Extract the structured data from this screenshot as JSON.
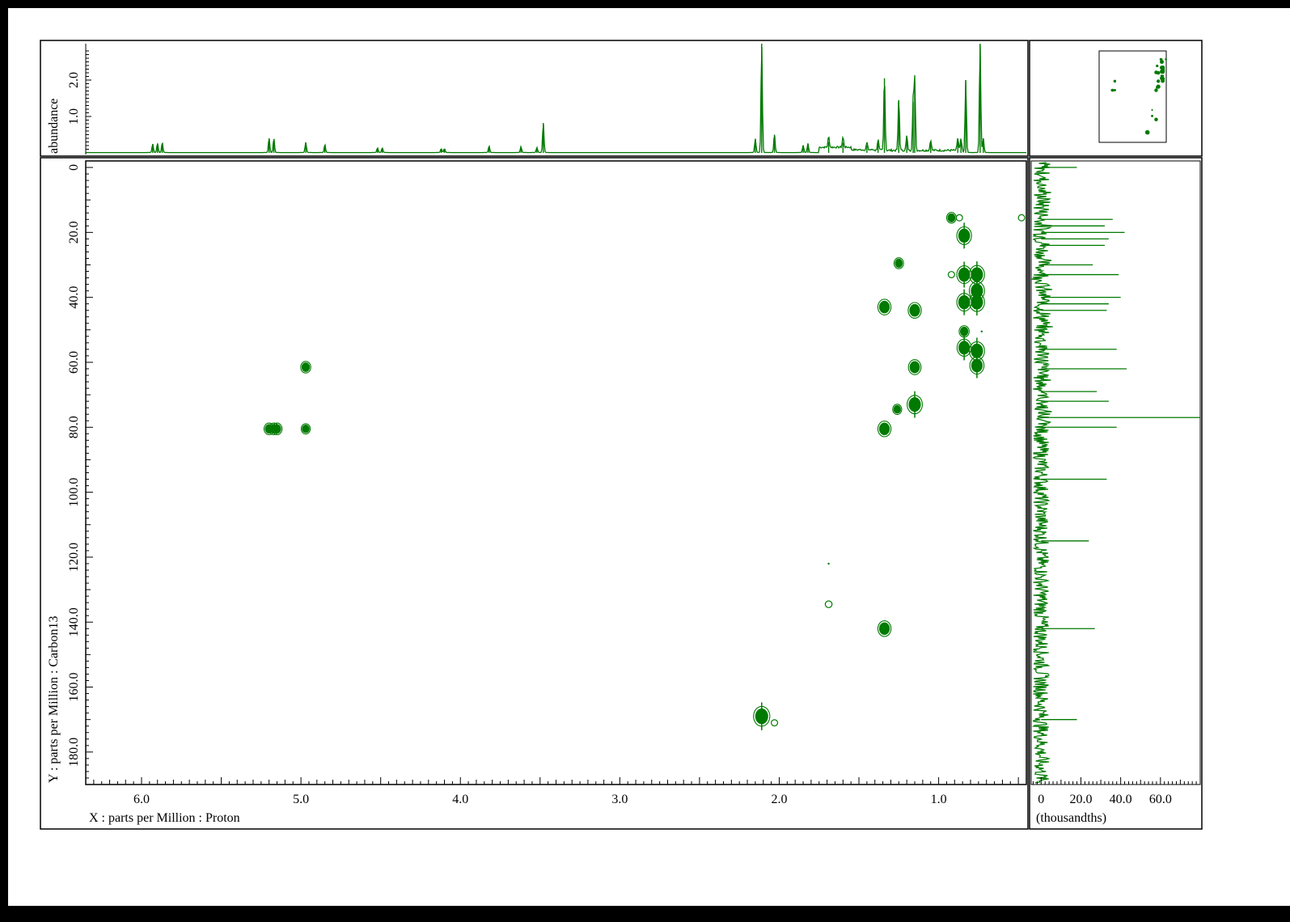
{
  "chart_data": {
    "type": "heatmap",
    "subtype": "2D NMR HSQC contour plot",
    "x_axis": {
      "label": "X : parts per Million : Proton",
      "range": [
        6.35,
        0.45
      ],
      "reversed": true,
      "tick_labels": [
        "6.0",
        "5.0",
        "4.0",
        "3.0",
        "2.0",
        "1.0"
      ],
      "tick_values": [
        6.0,
        5.0,
        4.0,
        3.0,
        2.0,
        1.0
      ]
    },
    "y_axis": {
      "label": "Y : parts per Million : Carbon13",
      "range": [
        -2,
        190
      ],
      "tick_labels": [
        "0",
        "20.0",
        "40.0",
        "60.0",
        "80.0",
        "100.0",
        "120.0",
        "140.0",
        "160.0",
        "180.0"
      ],
      "tick_values": [
        0,
        20,
        40,
        60,
        80,
        100,
        120,
        140,
        160,
        180
      ]
    },
    "top_projection": {
      "ylabel": "abundance",
      "ylim": [
        0,
        3.0
      ],
      "tick_labels": [
        "1.0",
        "2.0"
      ],
      "tick_values": [
        1.0,
        2.0
      ],
      "peaks": [
        {
          "x": 5.93,
          "y": 0.24
        },
        {
          "x": 5.9,
          "y": 0.26
        },
        {
          "x": 5.87,
          "y": 0.27
        },
        {
          "x": 5.2,
          "y": 0.4
        },
        {
          "x": 5.17,
          "y": 0.38
        },
        {
          "x": 4.97,
          "y": 0.28
        },
        {
          "x": 4.85,
          "y": 0.22
        },
        {
          "x": 4.52,
          "y": 0.13
        },
        {
          "x": 4.49,
          "y": 0.13
        },
        {
          "x": 4.12,
          "y": 0.11
        },
        {
          "x": 4.1,
          "y": 0.11
        },
        {
          "x": 3.82,
          "y": 0.18
        },
        {
          "x": 3.62,
          "y": 0.16
        },
        {
          "x": 3.52,
          "y": 0.14
        },
        {
          "x": 3.48,
          "y": 0.82
        },
        {
          "x": 2.15,
          "y": 0.38
        },
        {
          "x": 2.11,
          "y": 3.0
        },
        {
          "x": 2.03,
          "y": 0.5
        },
        {
          "x": 1.85,
          "y": 0.2
        },
        {
          "x": 1.82,
          "y": 0.25
        },
        {
          "x": 1.69,
          "y": 0.3
        },
        {
          "x": 1.6,
          "y": 0.28
        },
        {
          "x": 1.45,
          "y": 0.2
        },
        {
          "x": 1.38,
          "y": 0.3
        },
        {
          "x": 1.34,
          "y": 2.05
        },
        {
          "x": 1.25,
          "y": 1.45
        },
        {
          "x": 1.2,
          "y": 0.4
        },
        {
          "x": 1.16,
          "y": 1.4
        },
        {
          "x": 1.15,
          "y": 1.95
        },
        {
          "x": 1.05,
          "y": 0.3
        },
        {
          "x": 0.88,
          "y": 0.35
        },
        {
          "x": 0.86,
          "y": 0.3
        },
        {
          "x": 0.83,
          "y": 2.0
        },
        {
          "x": 0.74,
          "y": 3.0
        },
        {
          "x": 0.72,
          "y": 0.4
        }
      ]
    },
    "right_projection": {
      "xlabel": "(thousandths)",
      "xlim": [
        -5,
        80
      ],
      "tick_labels": [
        "0",
        "20.0",
        "40.0",
        "60.0"
      ],
      "tick_values": [
        0,
        20,
        40,
        60
      ],
      "peaks": [
        {
          "y": 0,
          "x": 18
        },
        {
          "y": 16,
          "x": 36
        },
        {
          "y": 18,
          "x": 32
        },
        {
          "y": 20,
          "x": 42
        },
        {
          "y": 22,
          "x": 34
        },
        {
          "y": 24,
          "x": 32
        },
        {
          "y": 30,
          "x": 26
        },
        {
          "y": 33,
          "x": 39
        },
        {
          "y": 40,
          "x": 40
        },
        {
          "y": 42,
          "x": 34
        },
        {
          "y": 44,
          "x": 33
        },
        {
          "y": 56,
          "x": 38
        },
        {
          "y": 62,
          "x": 43
        },
        {
          "y": 69,
          "x": 28
        },
        {
          "y": 72,
          "x": 34
        },
        {
          "y": 77,
          "x": 80
        },
        {
          "y": 80,
          "x": 38
        },
        {
          "y": 96,
          "x": 33
        },
        {
          "y": 115,
          "x": 24
        },
        {
          "y": 142,
          "x": 27
        },
        {
          "y": 170,
          "x": 18
        }
      ]
    },
    "cross_peaks": [
      {
        "x": 5.2,
        "y": 80.5,
        "size": 1
      },
      {
        "x": 5.17,
        "y": 80.5,
        "size": 1
      },
      {
        "x": 5.15,
        "y": 80.5,
        "size": 1
      },
      {
        "x": 4.97,
        "y": 61.5,
        "size": 1
      },
      {
        "x": 4.97,
        "y": 80.5,
        "size": 0.8
      },
      {
        "x": 2.11,
        "y": 169.0,
        "size": 2.2
      },
      {
        "x": 2.03,
        "y": 171.0,
        "size": 0.6
      },
      {
        "x": 1.69,
        "y": 122.0,
        "size": 0.3
      },
      {
        "x": 1.69,
        "y": 134.5,
        "size": 0.7
      },
      {
        "x": 1.34,
        "y": 43.0,
        "size": 1.6
      },
      {
        "x": 1.34,
        "y": 80.5,
        "size": 1.6
      },
      {
        "x": 1.34,
        "y": 142.0,
        "size": 1.6
      },
      {
        "x": 1.25,
        "y": 29.5,
        "size": 0.9
      },
      {
        "x": 1.26,
        "y": 74.5,
        "size": 0.8
      },
      {
        "x": 1.15,
        "y": 44.0,
        "size": 1.6
      },
      {
        "x": 1.15,
        "y": 61.5,
        "size": 1.5
      },
      {
        "x": 1.15,
        "y": 73.0,
        "size": 2.0
      },
      {
        "x": 0.92,
        "y": 15.5,
        "size": 0.9
      },
      {
        "x": 0.87,
        "y": 15.5,
        "size": 0.6
      },
      {
        "x": 0.84,
        "y": 21.0,
        "size": 1.9
      },
      {
        "x": 0.84,
        "y": 33.0,
        "size": 1.9
      },
      {
        "x": 0.84,
        "y": 41.5,
        "size": 1.9
      },
      {
        "x": 0.84,
        "y": 50.5,
        "size": 1.0
      },
      {
        "x": 0.84,
        "y": 55.5,
        "size": 1.8
      },
      {
        "x": 0.92,
        "y": 33.0,
        "size": 0.6
      },
      {
        "x": 0.76,
        "y": 33.0,
        "size": 2.0
      },
      {
        "x": 0.76,
        "y": 38.0,
        "size": 2.0
      },
      {
        "x": 0.76,
        "y": 41.5,
        "size": 2.0
      },
      {
        "x": 0.76,
        "y": 56.5,
        "size": 2.0
      },
      {
        "x": 0.76,
        "y": 61.0,
        "size": 1.8
      },
      {
        "x": 0.48,
        "y": 15.5,
        "size": 0.6
      },
      {
        "x": 0.73,
        "y": 50.5,
        "size": 0.4
      }
    ],
    "grid": false,
    "legend": "none",
    "color": "#007a00"
  }
}
